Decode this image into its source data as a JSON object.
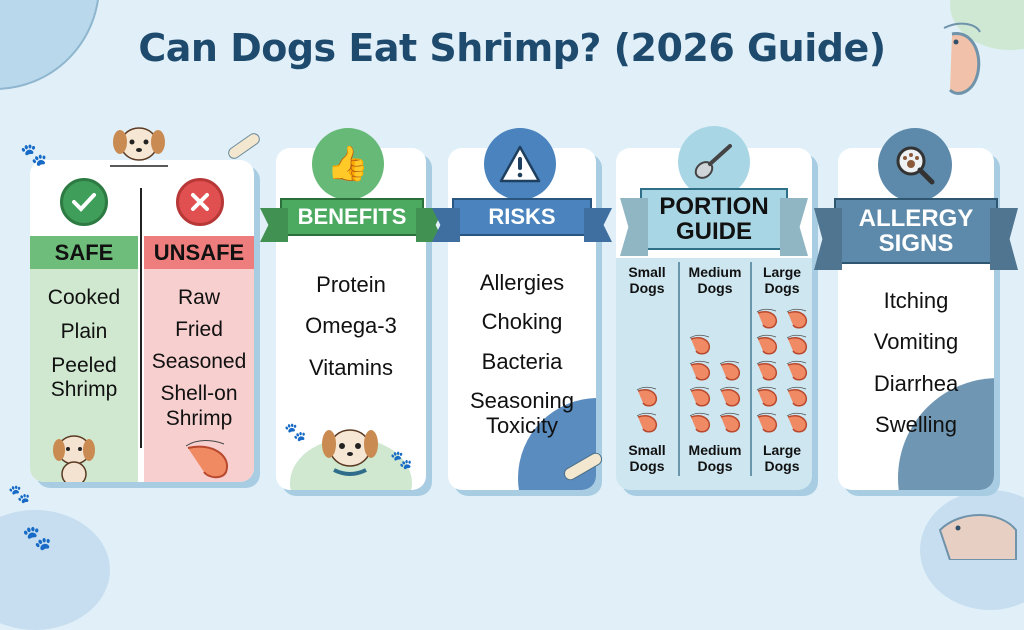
{
  "title": "Can Dogs Eat Shrimp? (2026 Guide)",
  "safe_unsafe": {
    "safe_label": "SAFE",
    "unsafe_label": "UNSAFE",
    "safe_items": [
      "Cooked",
      "Plain",
      "Peeled Shrimp"
    ],
    "unsafe_items": [
      "Raw",
      "Fried",
      "Seasoned",
      "Shell-on Shrimp"
    ],
    "icons": [
      "check-icon",
      "x-icon",
      "dog-icon",
      "shrimp-icon"
    ]
  },
  "benefits": {
    "label": "BENEFITS",
    "icon": "thumbs-up-icon",
    "items": [
      "Protein",
      "Omega-3",
      "Vitamins"
    ]
  },
  "risks": {
    "label": "RISKS",
    "icon": "warning-icon",
    "items": [
      "Allergies",
      "Choking",
      "Bacteria",
      "Seasoning Toxicity"
    ]
  },
  "portion": {
    "label_1": "PORTION",
    "label_2": "GUIDE",
    "icon": "spoon-icon",
    "columns": [
      {
        "top_1": "Small",
        "top_2": "Dogs",
        "bottom_1": "Small",
        "bottom_2": "Dogs",
        "shrimp_count": 2
      },
      {
        "top_1": "Medium",
        "top_2": "Dogs",
        "bottom_1": "Medium",
        "bottom_2": "Dogs",
        "shrimp_count": 7
      },
      {
        "top_1": "Large",
        "top_2": "Dogs",
        "bottom_1": "Large",
        "bottom_2": "Dogs",
        "shrimp_count": 10
      }
    ]
  },
  "allergy": {
    "label_1": "ALLERGY",
    "label_2": "SIGNS",
    "icon": "magnifier-paw-icon",
    "items": [
      "Itching",
      "Vomiting",
      "Diarrhea",
      "Swelling"
    ]
  },
  "colors": {
    "title": "#1e4a6e",
    "green": "#4fa86a",
    "red": "#e35b5b",
    "blue": "#4a85bf",
    "teal": "#a9d6e5",
    "slate": "#5a87a8",
    "shrimp": "#ef8a64"
  }
}
